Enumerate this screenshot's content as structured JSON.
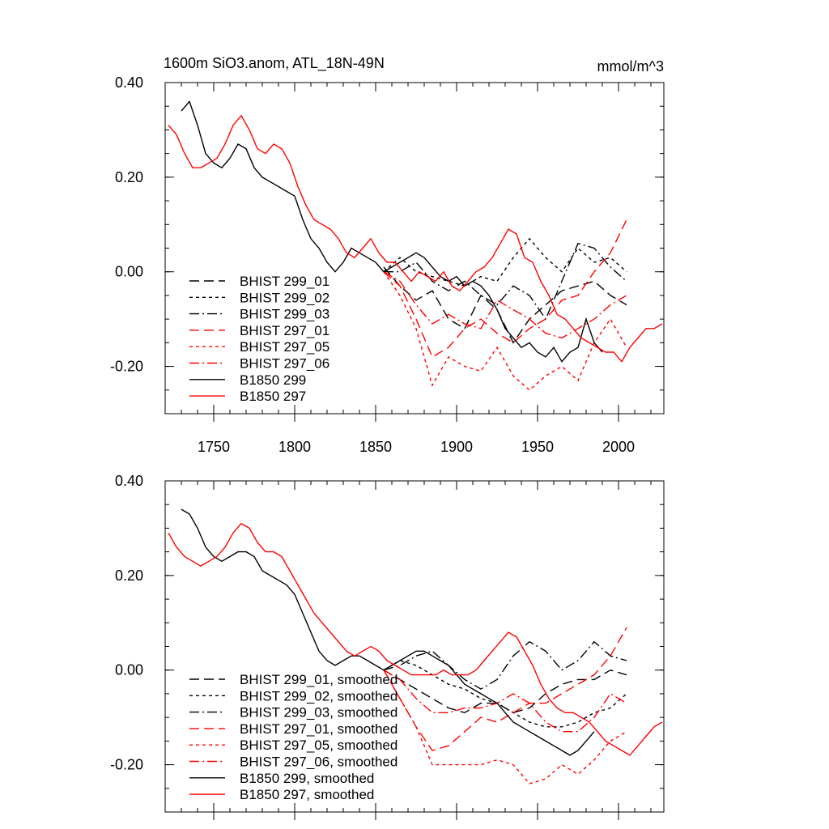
{
  "figure": {
    "title_left": "1600m SiO3.anom, ATL_18N-49N",
    "title_right": "mmol/m^3"
  },
  "chart_data": [
    {
      "type": "line",
      "title": "1600m SiO3.anom, ATL_18N-49N",
      "units": "mmol/m^3",
      "xlim": [
        1720,
        2028
      ],
      "ylim": [
        -0.3,
        0.4
      ],
      "x_ticks": [
        1750,
        1800,
        1850,
        1900,
        1950,
        2000
      ],
      "x_tick_labels": [
        "1750",
        "1800",
        "1850",
        "1900",
        "1950",
        "2000"
      ],
      "y_ticks": [
        -0.2,
        0.0,
        0.2,
        0.4
      ],
      "y_tick_labels": [
        "-0.20",
        "0.00",
        "0.20",
        "0.40"
      ],
      "legend_position": "lower-left",
      "series": [
        {
          "name": "BHIST 299_01",
          "color": "#000000",
          "dash": "long-dash",
          "x": [
            1855,
            1865,
            1875,
            1885,
            1895,
            1905,
            1915,
            1925,
            1935,
            1945,
            1955,
            1965,
            1975,
            1985,
            1995,
            2005
          ],
          "y": [
            0.01,
            -0.03,
            -0.06,
            -0.04,
            -0.1,
            -0.12,
            -0.05,
            -0.08,
            -0.15,
            -0.1,
            -0.07,
            -0.04,
            -0.03,
            -0.02,
            -0.05,
            -0.07
          ]
        },
        {
          "name": "BHIST 299_02",
          "color": "#000000",
          "dash": "short-dash",
          "x": [
            1855,
            1865,
            1875,
            1885,
            1895,
            1905,
            1915,
            1925,
            1935,
            1945,
            1955,
            1965,
            1975,
            1985,
            1995,
            2005
          ],
          "y": [
            0.0,
            0.03,
            0.0,
            -0.01,
            -0.02,
            -0.03,
            -0.01,
            -0.02,
            0.03,
            0.07,
            0.03,
            0.0,
            0.05,
            0.02,
            0.03,
            0.0
          ]
        },
        {
          "name": "BHIST 299_03",
          "color": "#000000",
          "dash": "dash-dot",
          "x": [
            1855,
            1865,
            1875,
            1885,
            1895,
            1905,
            1915,
            1925,
            1935,
            1945,
            1955,
            1965,
            1975,
            1985,
            1995,
            2005
          ],
          "y": [
            0.0,
            0.0,
            0.02,
            -0.02,
            -0.04,
            -0.02,
            -0.05,
            -0.07,
            -0.03,
            -0.05,
            -0.1,
            -0.02,
            0.06,
            0.05,
            0.01,
            -0.02
          ]
        },
        {
          "name": "BHIST 297_01",
          "color": "#ff0000",
          "dash": "long-dash",
          "x": [
            1855,
            1865,
            1875,
            1885,
            1895,
            1905,
            1915,
            1925,
            1935,
            1945,
            1955,
            1965,
            1975,
            1985,
            1995,
            2005
          ],
          "y": [
            0.0,
            -0.03,
            -0.1,
            -0.18,
            -0.16,
            -0.12,
            -0.1,
            -0.13,
            -0.15,
            -0.12,
            -0.1,
            -0.06,
            -0.05,
            0.0,
            0.04,
            0.11
          ]
        },
        {
          "name": "BHIST 297_05",
          "color": "#ff0000",
          "dash": "short-dash",
          "x": [
            1855,
            1865,
            1875,
            1885,
            1895,
            1905,
            1915,
            1925,
            1935,
            1945,
            1955,
            1965,
            1975,
            1985,
            1995,
            2005
          ],
          "y": [
            0.0,
            -0.05,
            -0.12,
            -0.24,
            -0.18,
            -0.2,
            -0.21,
            -0.16,
            -0.22,
            -0.25,
            -0.22,
            -0.2,
            -0.23,
            -0.15,
            -0.1,
            -0.16
          ]
        },
        {
          "name": "BHIST 297_06",
          "color": "#ff0000",
          "dash": "dash-dot",
          "x": [
            1855,
            1865,
            1875,
            1885,
            1895,
            1905,
            1915,
            1925,
            1935,
            1945,
            1955,
            1965,
            1975,
            1985,
            1995,
            2005
          ],
          "y": [
            0.0,
            -0.02,
            -0.07,
            -0.11,
            -0.09,
            -0.11,
            -0.12,
            -0.06,
            -0.08,
            -0.1,
            -0.13,
            -0.14,
            -0.12,
            -0.1,
            -0.07,
            -0.05
          ]
        },
        {
          "name": "B1850 299",
          "color": "#000000",
          "dash": "solid",
          "x": [
            1730,
            1735,
            1740,
            1745,
            1750,
            1755,
            1760,
            1765,
            1770,
            1775,
            1780,
            1785,
            1790,
            1795,
            1800,
            1805,
            1810,
            1815,
            1820,
            1825,
            1830,
            1835,
            1840,
            1845,
            1850,
            1855,
            1860,
            1865,
            1870,
            1875,
            1880,
            1885,
            1890,
            1895,
            1900,
            1905,
            1910,
            1915,
            1920,
            1925,
            1930,
            1935,
            1940,
            1945,
            1950,
            1955,
            1960,
            1965,
            1970,
            1975,
            1980,
            1985,
            1990
          ],
          "y": [
            0.34,
            0.36,
            0.31,
            0.25,
            0.23,
            0.22,
            0.24,
            0.27,
            0.26,
            0.22,
            0.2,
            0.19,
            0.18,
            0.17,
            0.16,
            0.11,
            0.07,
            0.05,
            0.02,
            0.0,
            0.02,
            0.05,
            0.04,
            0.03,
            0.02,
            0.0,
            0.01,
            0.02,
            0.03,
            0.04,
            0.03,
            0.01,
            -0.01,
            -0.02,
            -0.01,
            -0.03,
            -0.02,
            -0.03,
            -0.05,
            -0.08,
            -0.12,
            -0.14,
            -0.16,
            -0.15,
            -0.17,
            -0.18,
            -0.16,
            -0.19,
            -0.17,
            -0.16,
            -0.1,
            -0.15,
            -0.17
          ]
        },
        {
          "name": "B1850 297",
          "color": "#ff0000",
          "dash": "solid",
          "x": [
            1722,
            1727,
            1732,
            1737,
            1742,
            1747,
            1752,
            1757,
            1762,
            1767,
            1772,
            1777,
            1782,
            1787,
            1792,
            1797,
            1802,
            1807,
            1812,
            1817,
            1822,
            1827,
            1832,
            1837,
            1842,
            1847,
            1852,
            1857,
            1862,
            1867,
            1872,
            1877,
            1882,
            1887,
            1892,
            1897,
            1902,
            1907,
            1912,
            1917,
            1922,
            1927,
            1932,
            1937,
            1942,
            1947,
            1952,
            1957,
            1962,
            1967,
            1972,
            1977,
            1982,
            1987,
            1992,
            1997,
            2002,
            2007,
            2012,
            2017,
            2022,
            2027
          ],
          "y": [
            0.31,
            0.29,
            0.25,
            0.22,
            0.22,
            0.23,
            0.24,
            0.27,
            0.31,
            0.33,
            0.3,
            0.26,
            0.25,
            0.27,
            0.26,
            0.23,
            0.18,
            0.14,
            0.11,
            0.1,
            0.09,
            0.07,
            0.04,
            0.03,
            0.05,
            0.07,
            0.04,
            0.02,
            0.02,
            0.0,
            -0.02,
            0.0,
            -0.01,
            -0.02,
            0.0,
            -0.03,
            -0.04,
            -0.02,
            0.0,
            0.01,
            0.03,
            0.06,
            0.09,
            0.08,
            0.03,
            0.02,
            -0.02,
            -0.05,
            -0.09,
            -0.1,
            -0.12,
            -0.14,
            -0.15,
            -0.16,
            -0.17,
            -0.17,
            -0.19,
            -0.16,
            -0.14,
            -0.12,
            -0.12,
            -0.11
          ]
        }
      ]
    },
    {
      "type": "line",
      "title": "",
      "xlim": [
        1720,
        2028
      ],
      "ylim": [
        -0.3,
        0.4
      ],
      "x_ticks": [
        1750,
        1800,
        1850,
        1900,
        1950,
        2000
      ],
      "x_tick_labels": [],
      "y_ticks": [
        -0.2,
        0.0,
        0.2,
        0.4
      ],
      "y_tick_labels": [
        "-0.20",
        "0.00",
        "0.20",
        "0.40"
      ],
      "legend_position": "lower-left",
      "series": [
        {
          "name": "BHIST 299_01, smoothed",
          "color": "#000000",
          "dash": "long-dash",
          "x": [
            1855,
            1865,
            1875,
            1885,
            1895,
            1905,
            1915,
            1925,
            1935,
            1945,
            1955,
            1965,
            1975,
            1985,
            1995,
            2005
          ],
          "y": [
            0.0,
            -0.02,
            -0.04,
            -0.06,
            -0.08,
            -0.09,
            -0.07,
            -0.07,
            -0.09,
            -0.08,
            -0.05,
            -0.03,
            -0.02,
            -0.02,
            0.0,
            -0.01
          ]
        },
        {
          "name": "BHIST 299_02, smoothed",
          "color": "#000000",
          "dash": "short-dash",
          "x": [
            1855,
            1865,
            1875,
            1885,
            1895,
            1905,
            1915,
            1925,
            1935,
            1945,
            1955,
            1965,
            1975,
            1985,
            1995,
            2005
          ],
          "y": [
            0.0,
            0.02,
            0.01,
            -0.01,
            -0.03,
            -0.04,
            -0.06,
            -0.07,
            -0.09,
            -0.11,
            -0.12,
            -0.12,
            -0.11,
            -0.09,
            -0.08,
            -0.05
          ]
        },
        {
          "name": "BHIST 299_03, smoothed",
          "color": "#000000",
          "dash": "dash-dot",
          "x": [
            1855,
            1865,
            1875,
            1885,
            1895,
            1905,
            1915,
            1925,
            1935,
            1945,
            1955,
            1965,
            1975,
            1985,
            1995,
            2005
          ],
          "y": [
            0.0,
            0.01,
            0.03,
            0.04,
            0.01,
            -0.02,
            -0.04,
            -0.02,
            0.03,
            0.06,
            0.04,
            0.0,
            0.02,
            0.06,
            0.03,
            0.02
          ]
        },
        {
          "name": "BHIST 297_01, smoothed",
          "color": "#ff0000",
          "dash": "long-dash",
          "x": [
            1855,
            1865,
            1875,
            1885,
            1895,
            1905,
            1915,
            1925,
            1935,
            1945,
            1955,
            1965,
            1975,
            1985,
            1995,
            2005
          ],
          "y": [
            0.0,
            -0.06,
            -0.12,
            -0.17,
            -0.16,
            -0.13,
            -0.1,
            -0.11,
            -0.09,
            -0.07,
            -0.07,
            -0.05,
            -0.03,
            -0.01,
            0.03,
            0.09
          ]
        },
        {
          "name": "BHIST 297_05, smoothed",
          "color": "#ff0000",
          "dash": "short-dash",
          "x": [
            1855,
            1865,
            1875,
            1885,
            1895,
            1905,
            1915,
            1925,
            1935,
            1945,
            1955,
            1965,
            1975,
            1985,
            1995,
            2005
          ],
          "y": [
            0.0,
            -0.06,
            -0.12,
            -0.2,
            -0.2,
            -0.2,
            -0.2,
            -0.19,
            -0.2,
            -0.24,
            -0.23,
            -0.2,
            -0.22,
            -0.19,
            -0.15,
            -0.13
          ]
        },
        {
          "name": "BHIST 297_06, smoothed",
          "color": "#ff0000",
          "dash": "dash-dot",
          "x": [
            1855,
            1865,
            1875,
            1885,
            1895,
            1905,
            1915,
            1925,
            1935,
            1945,
            1955,
            1965,
            1975,
            1985,
            1995,
            2005
          ],
          "y": [
            0.0,
            -0.02,
            -0.06,
            -0.09,
            -0.09,
            -0.08,
            -0.08,
            -0.07,
            -0.05,
            -0.07,
            -0.11,
            -0.13,
            -0.13,
            -0.1,
            -0.05,
            -0.07
          ]
        },
        {
          "name": "B1850 299, smoothed",
          "color": "#000000",
          "dash": "solid",
          "x": [
            1730,
            1735,
            1740,
            1745,
            1750,
            1755,
            1760,
            1765,
            1770,
            1775,
            1780,
            1785,
            1790,
            1795,
            1800,
            1805,
            1810,
            1815,
            1820,
            1825,
            1830,
            1835,
            1840,
            1845,
            1850,
            1855,
            1860,
            1865,
            1870,
            1875,
            1880,
            1885,
            1890,
            1895,
            1900,
            1905,
            1910,
            1915,
            1920,
            1925,
            1930,
            1935,
            1940,
            1945,
            1950,
            1955,
            1960,
            1965,
            1970,
            1975,
            1980,
            1985
          ],
          "y": [
            0.34,
            0.33,
            0.3,
            0.26,
            0.24,
            0.23,
            0.24,
            0.25,
            0.25,
            0.24,
            0.21,
            0.2,
            0.19,
            0.18,
            0.16,
            0.12,
            0.08,
            0.04,
            0.02,
            0.01,
            0.02,
            0.03,
            0.03,
            0.02,
            0.01,
            0.0,
            0.01,
            0.02,
            0.03,
            0.04,
            0.04,
            0.03,
            0.02,
            0.01,
            -0.01,
            -0.03,
            -0.04,
            -0.05,
            -0.06,
            -0.07,
            -0.09,
            -0.11,
            -0.12,
            -0.13,
            -0.14,
            -0.15,
            -0.16,
            -0.17,
            -0.18,
            -0.17,
            -0.15,
            -0.13
          ]
        },
        {
          "name": "B1850 297, smoothed",
          "color": "#ff0000",
          "dash": "solid",
          "x": [
            1722,
            1727,
            1732,
            1737,
            1742,
            1747,
            1752,
            1757,
            1762,
            1767,
            1772,
            1777,
            1782,
            1787,
            1792,
            1797,
            1802,
            1807,
            1812,
            1817,
            1822,
            1827,
            1832,
            1837,
            1842,
            1847,
            1852,
            1857,
            1862,
            1867,
            1872,
            1877,
            1882,
            1887,
            1892,
            1897,
            1902,
            1907,
            1912,
            1917,
            1922,
            1927,
            1932,
            1937,
            1942,
            1947,
            1952,
            1957,
            1962,
            1967,
            1972,
            1977,
            1982,
            1987,
            1992,
            1997,
            2002,
            2007,
            2012,
            2017,
            2022,
            2027
          ],
          "y": [
            0.29,
            0.26,
            0.24,
            0.23,
            0.22,
            0.23,
            0.24,
            0.26,
            0.29,
            0.31,
            0.3,
            0.27,
            0.25,
            0.25,
            0.24,
            0.21,
            0.18,
            0.15,
            0.12,
            0.1,
            0.08,
            0.06,
            0.04,
            0.03,
            0.04,
            0.05,
            0.04,
            0.02,
            0.01,
            0.0,
            -0.01,
            -0.01,
            -0.01,
            -0.01,
            0.0,
            -0.01,
            -0.01,
            -0.01,
            0.0,
            0.02,
            0.04,
            0.06,
            0.08,
            0.07,
            0.04,
            0.01,
            -0.03,
            -0.06,
            -0.08,
            -0.09,
            -0.09,
            -0.1,
            -0.11,
            -0.13,
            -0.15,
            -0.16,
            -0.17,
            -0.18,
            -0.16,
            -0.14,
            -0.12,
            -0.11
          ]
        }
      ]
    }
  ]
}
